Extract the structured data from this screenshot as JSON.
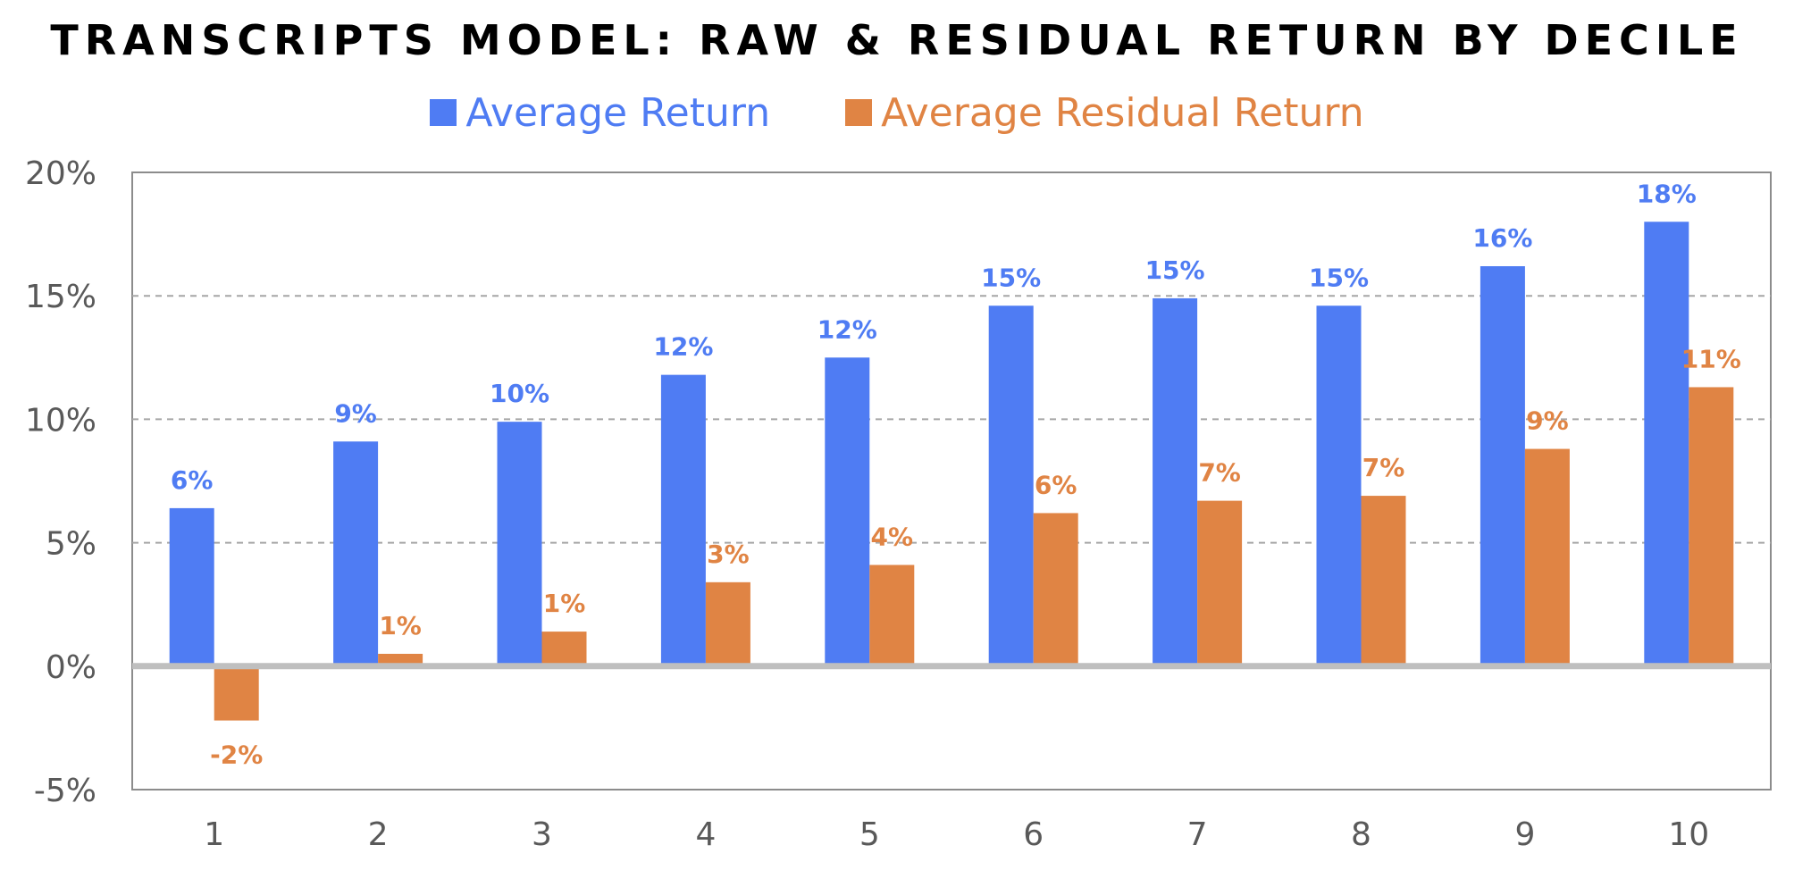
{
  "chart_data": {
    "type": "bar",
    "title": "TRANSCRIPTS MODEL: RAW & RESIDUAL RETURN BY DECILE",
    "categories": [
      "1",
      "2",
      "3",
      "4",
      "5",
      "6",
      "7",
      "8",
      "9",
      "10"
    ],
    "series": [
      {
        "name": "Average Return",
        "color": "#4f7cf3",
        "values": [
          6.4,
          9.1,
          9.9,
          11.8,
          12.5,
          14.6,
          14.9,
          14.6,
          16.2,
          18.0
        ],
        "labels": [
          "6%",
          "9%",
          "10%",
          "12%",
          "12%",
          "15%",
          "15%",
          "15%",
          "16%",
          "18%"
        ]
      },
      {
        "name": "Average Residual Return",
        "color": "#e08444",
        "values": [
          -2.2,
          0.5,
          1.4,
          3.4,
          4.1,
          6.2,
          6.7,
          6.9,
          8.8,
          11.3
        ],
        "labels": [
          "-2%",
          "1%",
          "1%",
          "3%",
          "4%",
          "6%",
          "7%",
          "7%",
          "9%",
          "11%"
        ]
      }
    ],
    "ylim": [
      -5,
      20
    ],
    "yticks": [
      -5,
      0,
      5,
      10,
      15,
      20
    ],
    "ytick_labels": [
      "-5%",
      "0%",
      "5%",
      "10%",
      "15%",
      "20%"
    ],
    "xlabel": "",
    "ylabel": "",
    "grid": "horizontal dashed",
    "legend_position": "top-center"
  }
}
